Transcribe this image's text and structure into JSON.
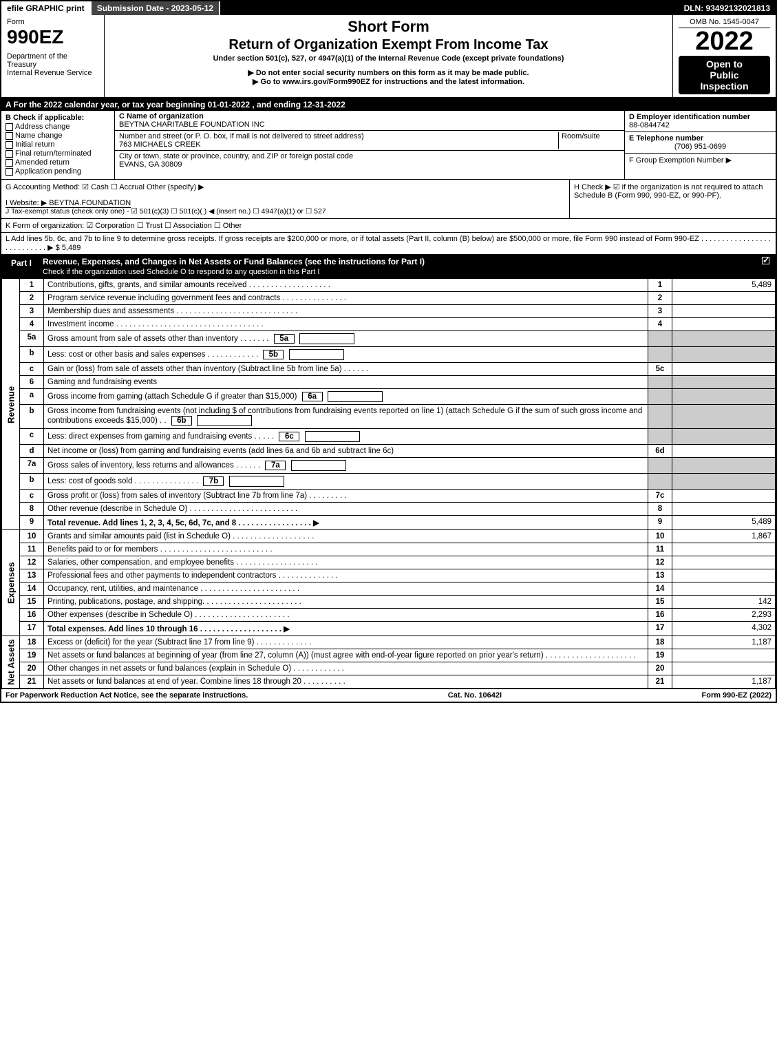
{
  "topbar": {
    "efile": "efile GRAPHIC print",
    "submission": "Submission Date - 2023-05-12",
    "dln": "DLN: 93492132021813"
  },
  "header": {
    "form_word": "Form",
    "form_number": "990EZ",
    "dept": "Department of the Treasury\nInternal Revenue Service",
    "title_short": "Short Form",
    "title_return": "Return of Organization Exempt From Income Tax",
    "subtitle": "Under section 501(c), 527, or 4947(a)(1) of the Internal Revenue Code (except private foundations)",
    "warn1": "▶ Do not enter social security numbers on this form as it may be made public.",
    "warn2": "▶ Go to www.irs.gov/Form990EZ for instructions and the latest information.",
    "omb": "OMB No. 1545-0047",
    "year": "2022",
    "open1": "Open to",
    "open2": "Public",
    "open3": "Inspection"
  },
  "sectionA": "A  For the 2022 calendar year, or tax year beginning 01-01-2022 , and ending 12-31-2022",
  "sectionB": {
    "label": "B  Check if applicable:",
    "opts": [
      "Address change",
      "Name change",
      "Initial return",
      "Final return/terminated",
      "Amended return",
      "Application pending"
    ]
  },
  "sectionC": {
    "name_lbl": "C Name of organization",
    "name": "BEYTNA CHARITABLE FOUNDATION INC",
    "addr_lbl": "Number and street (or P. O. box, if mail is not delivered to street address)",
    "addr": "763 MICHAELS CREEK",
    "room_lbl": "Room/suite",
    "city_lbl": "City or town, state or province, country, and ZIP or foreign postal code",
    "city": "EVANS, GA  30809"
  },
  "sectionD": {
    "lbl": "D Employer identification number",
    "val": "88-0844742"
  },
  "sectionE": {
    "lbl": "E Telephone number",
    "val": "(706) 951-0699"
  },
  "sectionF": {
    "lbl": "F Group Exemption Number  ▶"
  },
  "sectionG": "G Accounting Method:   ☑ Cash  ☐ Accrual   Other (specify) ▶",
  "sectionH": "H  Check ▶ ☑ if the organization is not required to attach Schedule B (Form 990, 990-EZ, or 990-PF).",
  "sectionI": "I Website: ▶ BEYTNA.FOUNDATION",
  "sectionJ": "J Tax-exempt status (check only one) - ☑ 501(c)(3)  ☐ 501(c)(  ) ◀ (insert no.)  ☐ 4947(a)(1) or  ☐ 527",
  "sectionK": "K Form of organization:  ☑ Corporation  ☐ Trust  ☐ Association  ☐ Other",
  "sectionL": "L Add lines 5b, 6c, and 7b to line 9 to determine gross receipts. If gross receipts are $200,000 or more, or if total assets (Part II, column (B) below) are $500,000 or more, file Form 990 instead of Form 990-EZ  .  .  .  .  .  .  .  .  .  .  .  .  .  .  .  .  .  .  .  .  .  .  .  .  .  .  .  ▶ $ 5,489",
  "part1": {
    "label": "Part I",
    "title": "Revenue, Expenses, and Changes in Net Assets or Fund Balances (see the instructions for Part I)",
    "subtitle": "Check if the organization used Schedule O to respond to any question in this Part I"
  },
  "revenue": {
    "side": "Revenue",
    "lines": [
      {
        "n": "1",
        "t": "Contributions, gifts, grants, and similar amounts received  .  .  .  .  .  .  .  .  .  .  .  .  .  .  .  .  .  .  .",
        "ref": "1",
        "v": "5,489"
      },
      {
        "n": "2",
        "t": "Program service revenue including government fees and contracts  .  .  .  .  .  .  .  .  .  .  .  .  .  .  .",
        "ref": "2",
        "v": ""
      },
      {
        "n": "3",
        "t": "Membership dues and assessments  .  .  .  .  .  .  .  .  .  .  .  .  .  .  .  .  .  .  .  .  .  .  .  .  .  .  .  .",
        "ref": "3",
        "v": ""
      },
      {
        "n": "4",
        "t": "Investment income  .  .  .  .  .  .  .  .  .  .  .  .  .  .  .  .  .  .  .  .  .  .  .  .  .  .  .  .  .  .  .  .  .  .",
        "ref": "4",
        "v": ""
      },
      {
        "n": "5a",
        "t": "Gross amount from sale of assets other than inventory  .  .  .  .  .  .  .",
        "sub": "5a",
        "shaded": true
      },
      {
        "n": "b",
        "t": "Less: cost or other basis and sales expenses  .  .  .  .  .  .  .  .  .  .  .  .",
        "sub": "5b",
        "shaded": true
      },
      {
        "n": "c",
        "t": "Gain or (loss) from sale of assets other than inventory (Subtract line 5b from line 5a)  .  .  .  .  .  .",
        "ref": "5c",
        "v": ""
      },
      {
        "n": "6",
        "t": "Gaming and fundraising events",
        "shaded": true
      },
      {
        "n": "a",
        "t": "Gross income from gaming (attach Schedule G if greater than $15,000)",
        "sub": "6a",
        "shaded": true
      },
      {
        "n": "b",
        "t": "Gross income from fundraising events (not including $                  of contributions from fundraising events reported on line 1) (attach Schedule G if the sum of such gross income and contributions exceeds $15,000)   .  .",
        "sub": "6b",
        "shaded": true
      },
      {
        "n": "c",
        "t": "Less: direct expenses from gaming and fundraising events  .  .  .  .  .",
        "sub": "6c",
        "shaded": true
      },
      {
        "n": "d",
        "t": "Net income or (loss) from gaming and fundraising events (add lines 6a and 6b and subtract line 6c)",
        "ref": "6d",
        "v": ""
      },
      {
        "n": "7a",
        "t": "Gross sales of inventory, less returns and allowances  .  .  .  .  .  .",
        "sub": "7a",
        "shaded": true
      },
      {
        "n": "b",
        "t": "Less: cost of goods sold       .  .  .  .  .  .  .  .  .  .  .  .  .  .  .",
        "sub": "7b",
        "shaded": true
      },
      {
        "n": "c",
        "t": "Gross profit or (loss) from sales of inventory (Subtract line 7b from line 7a)  .  .  .  .  .  .  .  .  .",
        "ref": "7c",
        "v": ""
      },
      {
        "n": "8",
        "t": "Other revenue (describe in Schedule O)  .  .  .  .  .  .  .  .  .  .  .  .  .  .  .  .  .  .  .  .  .  .  .  .  .",
        "ref": "8",
        "v": ""
      },
      {
        "n": "9",
        "t": "Total revenue. Add lines 1, 2, 3, 4, 5c, 6d, 7c, and 8   .  .  .  .  .  .  .  .  .  .  .  .  .  .  .  .  .  ▶",
        "ref": "9",
        "v": "5,489",
        "bold": true
      }
    ]
  },
  "expenses": {
    "side": "Expenses",
    "lines": [
      {
        "n": "10",
        "t": "Grants and similar amounts paid (list in Schedule O)  .  .  .  .  .  .  .  .  .  .  .  .  .  .  .  .  .  .  .",
        "ref": "10",
        "v": "1,867"
      },
      {
        "n": "11",
        "t": "Benefits paid to or for members     .  .  .  .  .  .  .  .  .  .  .  .  .  .  .  .  .  .  .  .  .  .  .  .  .  .",
        "ref": "11",
        "v": ""
      },
      {
        "n": "12",
        "t": "Salaries, other compensation, and employee benefits  .  .  .  .  .  .  .  .  .  .  .  .  .  .  .  .  .  .  .",
        "ref": "12",
        "v": ""
      },
      {
        "n": "13",
        "t": "Professional fees and other payments to independent contractors  .  .  .  .  .  .  .  .  .  .  .  .  .  .",
        "ref": "13",
        "v": ""
      },
      {
        "n": "14",
        "t": "Occupancy, rent, utilities, and maintenance  .  .  .  .  .  .  .  .  .  .  .  .  .  .  .  .  .  .  .  .  .  .  .",
        "ref": "14",
        "v": ""
      },
      {
        "n": "15",
        "t": "Printing, publications, postage, and shipping.  .  .  .  .  .  .  .  .  .  .  .  .  .  .  .  .  .  .  .  .  .  .",
        "ref": "15",
        "v": "142"
      },
      {
        "n": "16",
        "t": "Other expenses (describe in Schedule O)     .  .  .  .  .  .  .  .  .  .  .  .  .  .  .  .  .  .  .  .  .  .",
        "ref": "16",
        "v": "2,293"
      },
      {
        "n": "17",
        "t": "Total expenses. Add lines 10 through 16     .  .  .  .  .  .  .  .  .  .  .  .  .  .  .  .  .  .  .  ▶",
        "ref": "17",
        "v": "4,302",
        "bold": true
      }
    ]
  },
  "netassets": {
    "side": "Net Assets",
    "lines": [
      {
        "n": "18",
        "t": "Excess or (deficit) for the year (Subtract line 17 from line 9)       .  .  .  .  .  .  .  .  .  .  .  .  .",
        "ref": "18",
        "v": "1,187"
      },
      {
        "n": "19",
        "t": "Net assets or fund balances at beginning of year (from line 27, column (A)) (must agree with end-of-year figure reported on prior year's return)  .  .  .  .  .  .  .  .  .  .  .  .  .  .  .  .  .  .  .  .  .",
        "ref": "19",
        "v": ""
      },
      {
        "n": "20",
        "t": "Other changes in net assets or fund balances (explain in Schedule O)  .  .  .  .  .  .  .  .  .  .  .  .",
        "ref": "20",
        "v": ""
      },
      {
        "n": "21",
        "t": "Net assets or fund balances at end of year. Combine lines 18 through 20  .  .  .  .  .  .  .  .  .  .",
        "ref": "21",
        "v": "1,187"
      }
    ]
  },
  "footer": {
    "left": "For Paperwork Reduction Act Notice, see the separate instructions.",
    "center": "Cat. No. 10642I",
    "right": "Form 990-EZ (2022)"
  }
}
